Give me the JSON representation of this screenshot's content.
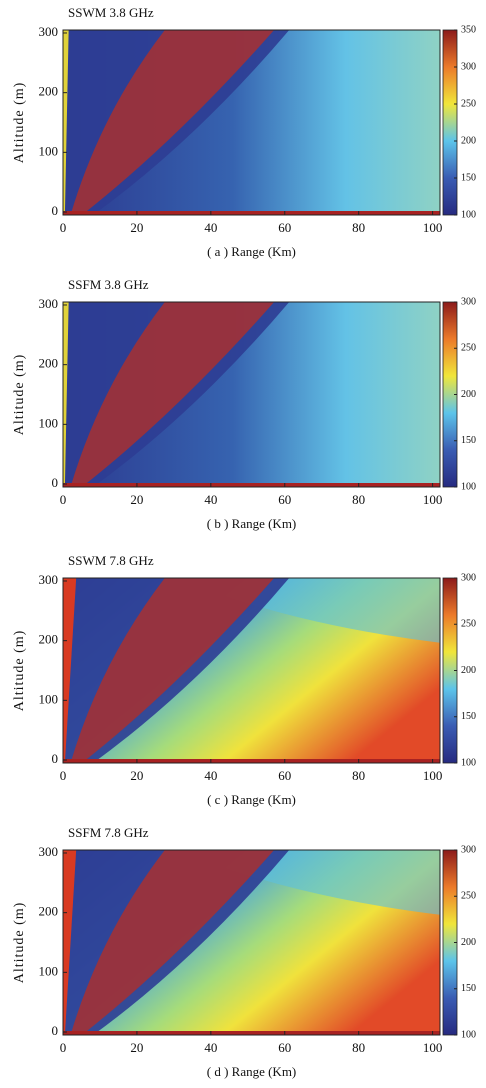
{
  "charts": [
    {
      "type": "heatmap",
      "title": "SSWM 3.8 GHz",
      "xlabel": "( a ) Range (Km)",
      "ylabel": "Altitude (m)",
      "xlim": [
        0,
        102
      ],
      "xticks": [
        0,
        20,
        40,
        60,
        80,
        100
      ],
      "ylim": [
        -5,
        305
      ],
      "yticks": [
        0,
        100,
        200,
        300
      ],
      "colorbar": {
        "lim": [
          100,
          350
        ],
        "ticks": [
          100,
          150,
          200,
          250,
          300,
          350
        ]
      }
    },
    {
      "type": "heatmap",
      "title": "SSFM 3.8 GHz",
      "xlabel": "( b ) Range (Km)",
      "ylabel": "Altitude (m)",
      "xlim": [
        0,
        102
      ],
      "xticks": [
        0,
        20,
        40,
        60,
        80,
        100
      ],
      "ylim": [
        -5,
        305
      ],
      "yticks": [
        0,
        100,
        200,
        300
      ],
      "colorbar": {
        "lim": [
          100,
          300
        ],
        "ticks": [
          100,
          150,
          200,
          250,
          300
        ]
      }
    },
    {
      "type": "heatmap",
      "title": "SSWM 7.8 GHz",
      "xlabel": "( c ) Range (Km)",
      "ylabel": "Altitude (m)",
      "xlim": [
        0,
        102
      ],
      "xticks": [
        0,
        20,
        40,
        60,
        80,
        100
      ],
      "ylim": [
        -5,
        305
      ],
      "yticks": [
        0,
        100,
        200,
        300
      ],
      "colorbar": {
        "lim": [
          100,
          300
        ],
        "ticks": [
          100,
          150,
          200,
          250,
          300
        ]
      }
    },
    {
      "type": "heatmap",
      "title": "SSFM 7.8 GHz",
      "xlabel": "( d ) Range (Km)",
      "ylabel": "Altitude (m)",
      "xlim": [
        0,
        102
      ],
      "xticks": [
        0,
        20,
        40,
        60,
        80,
        100
      ],
      "ylim": [
        -5,
        305
      ],
      "yticks": [
        0,
        100,
        200,
        300
      ],
      "colorbar": {
        "lim": [
          100,
          300
        ],
        "ticks": [
          100,
          150,
          200,
          250,
          300
        ]
      }
    }
  ]
}
